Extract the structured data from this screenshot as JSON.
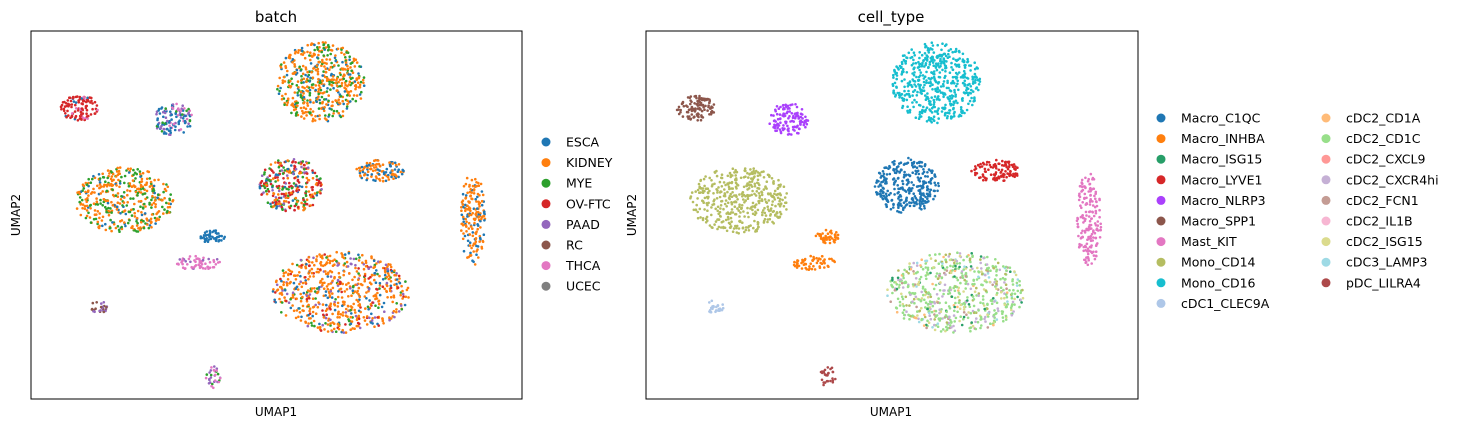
{
  "chart_data": [
    {
      "type": "scatter",
      "title": "batch",
      "xlabel": "UMAP1",
      "ylabel": "UMAP2",
      "xlim": [
        0,
        100
      ],
      "ylim": [
        0,
        100
      ],
      "grid": false,
      "legend_position": "right",
      "legend": [
        {
          "name": "ESCA",
          "color": "#1f77b4"
        },
        {
          "name": "KIDNEY",
          "color": "#ff7f0e"
        },
        {
          "name": "MYE",
          "color": "#2ca02c"
        },
        {
          "name": "OV-FTC",
          "color": "#d62728"
        },
        {
          "name": "PAAD",
          "color": "#9467bd"
        },
        {
          "name": "RC",
          "color": "#8c564b"
        },
        {
          "name": "THCA",
          "color": "#e377c2"
        },
        {
          "name": "UCEC",
          "color": "#7f7f7f"
        }
      ],
      "clusters": [
        {
          "x": 59,
          "y": 86,
          "rx": 9,
          "ry": 11,
          "n": 520,
          "mix": {
            "KIDNEY": 0.6,
            "MYE": 0.25,
            "ESCA": 0.15
          }
        },
        {
          "x": 10,
          "y": 79,
          "rx": 4,
          "ry": 3.5,
          "n": 110,
          "mix": {
            "OV-FTC": 0.8,
            "THCA": 0.12,
            "ESCA": 0.08
          }
        },
        {
          "x": 29,
          "y": 76,
          "rx": 4,
          "ry": 4.5,
          "n": 120,
          "mix": {
            "ESCA": 0.55,
            "PAAD": 0.25,
            "THCA": 0.1,
            "MYE": 0.1
          }
        },
        {
          "x": 19,
          "y": 54,
          "rx": 10,
          "ry": 9,
          "n": 430,
          "mix": {
            "KIDNEY": 0.6,
            "MYE": 0.3,
            "ESCA": 0.1
          }
        },
        {
          "x": 53,
          "y": 58,
          "rx": 6.5,
          "ry": 7.5,
          "n": 300,
          "mix": {
            "OV-FTC": 0.3,
            "KIDNEY": 0.25,
            "MYE": 0.2,
            "ESCA": 0.15,
            "PAAD": 0.1
          }
        },
        {
          "x": 71,
          "y": 62,
          "rx": 5,
          "ry": 3,
          "n": 110,
          "mix": {
            "KIDNEY": 0.55,
            "ESCA": 0.45
          }
        },
        {
          "x": 90,
          "y": 49,
          "rx": 2.5,
          "ry": 13,
          "n": 180,
          "mix": {
            "KIDNEY": 0.7,
            "ESCA": 0.3
          }
        },
        {
          "x": 37,
          "y": 44,
          "rx": 2.5,
          "ry": 2,
          "n": 45,
          "mix": {
            "ESCA": 1.0
          }
        },
        {
          "x": 34,
          "y": 37,
          "rx": 4.5,
          "ry": 2,
          "n": 60,
          "mix": {
            "THCA": 0.85,
            "PAAD": 0.15
          }
        },
        {
          "x": 14,
          "y": 25,
          "rx": 1.8,
          "ry": 1.8,
          "n": 25,
          "mix": {
            "RC": 0.6,
            "PAAD": 0.4
          }
        },
        {
          "x": 63,
          "y": 29,
          "rx": 14,
          "ry": 11,
          "n": 650,
          "mix": {
            "KIDNEY": 0.6,
            "ESCA": 0.12,
            "PAAD": 0.1,
            "OV-FTC": 0.1,
            "MYE": 0.08
          }
        },
        {
          "x": 37,
          "y": 6,
          "rx": 1.6,
          "ry": 3,
          "n": 30,
          "mix": {
            "PAAD": 0.4,
            "MYE": 0.3,
            "THCA": 0.3
          }
        }
      ]
    },
    {
      "type": "scatter",
      "title": "cell_type",
      "xlabel": "UMAP1",
      "ylabel": "UMAP2",
      "xlim": [
        0,
        100
      ],
      "ylim": [
        0,
        100
      ],
      "grid": false,
      "legend_position": "right",
      "legend": [
        {
          "name": "Macro_C1QC",
          "color": "#1f77b4"
        },
        {
          "name": "Macro_INHBA",
          "color": "#ff7f0e"
        },
        {
          "name": "Macro_ISG15",
          "color": "#279e68"
        },
        {
          "name": "Macro_LYVE1",
          "color": "#d62728"
        },
        {
          "name": "Macro_NLRP3",
          "color": "#aa40fc"
        },
        {
          "name": "Macro_SPP1",
          "color": "#8c564b"
        },
        {
          "name": "Mast_KIT",
          "color": "#e377c2"
        },
        {
          "name": "Mono_CD14",
          "color": "#b5bd61"
        },
        {
          "name": "Mono_CD16",
          "color": "#17becf"
        },
        {
          "name": "cDC1_CLEC9A",
          "color": "#aec7e8"
        },
        {
          "name": "cDC2_CD1A",
          "color": "#ffbb78"
        },
        {
          "name": "cDC2_CD1C",
          "color": "#98df8a"
        },
        {
          "name": "cDC2_CXCL9",
          "color": "#ff9896"
        },
        {
          "name": "cDC2_CXCR4hi",
          "color": "#c5b0d5"
        },
        {
          "name": "cDC2_FCN1",
          "color": "#c49c94"
        },
        {
          "name": "cDC2_IL1B",
          "color": "#f7b6d2"
        },
        {
          "name": "cDC2_ISG15",
          "color": "#dbdb8d"
        },
        {
          "name": "cDC3_LAMP3",
          "color": "#9edae5"
        },
        {
          "name": "pDC_LILRA4",
          "color": "#ad494a"
        }
      ],
      "clusters": [
        {
          "x": 59,
          "y": 86,
          "rx": 9,
          "ry": 11,
          "n": 520,
          "mix": {
            "Mono_CD16": 1.0
          }
        },
        {
          "x": 10,
          "y": 79,
          "rx": 4,
          "ry": 3.5,
          "n": 110,
          "mix": {
            "Macro_SPP1": 1.0
          }
        },
        {
          "x": 29,
          "y": 76,
          "rx": 4,
          "ry": 4.5,
          "n": 120,
          "mix": {
            "Macro_NLRP3": 1.0
          }
        },
        {
          "x": 19,
          "y": 54,
          "rx": 10,
          "ry": 9,
          "n": 430,
          "mix": {
            "Mono_CD14": 1.0
          }
        },
        {
          "x": 53,
          "y": 58,
          "rx": 6.5,
          "ry": 7.5,
          "n": 300,
          "mix": {
            "Macro_C1QC": 1.0
          }
        },
        {
          "x": 71,
          "y": 62,
          "rx": 5,
          "ry": 3,
          "n": 110,
          "mix": {
            "Macro_LYVE1": 1.0
          }
        },
        {
          "x": 90,
          "y": 49,
          "rx": 2.5,
          "ry": 13,
          "n": 180,
          "mix": {
            "Mast_KIT": 1.0
          }
        },
        {
          "x": 37,
          "y": 44,
          "rx": 2.5,
          "ry": 2,
          "n": 45,
          "mix": {
            "Macro_INHBA": 1.0
          }
        },
        {
          "x": 34,
          "y": 37,
          "rx": 4.5,
          "ry": 2,
          "n": 60,
          "mix": {
            "Macro_INHBA": 1.0
          }
        },
        {
          "x": 14,
          "y": 25,
          "rx": 1.8,
          "ry": 1.8,
          "n": 25,
          "mix": {
            "cDC1_CLEC9A": 1.0
          }
        },
        {
          "x": 63,
          "y": 29,
          "rx": 14,
          "ry": 11,
          "n": 650,
          "mix": {
            "cDC2_CD1C": 0.5,
            "cDC2_CXCR4hi": 0.15,
            "cDC2_ISG15": 0.1,
            "Mono_CD14": 0.08,
            "Macro_ISG15": 0.05,
            "cDC2_FCN1": 0.05,
            "cDC3_LAMP3": 0.04,
            "cDC2_CD1A": 0.03
          }
        },
        {
          "x": 37,
          "y": 6,
          "rx": 1.6,
          "ry": 3,
          "n": 30,
          "mix": {
            "pDC_LILRA4": 1.0
          }
        }
      ]
    }
  ]
}
